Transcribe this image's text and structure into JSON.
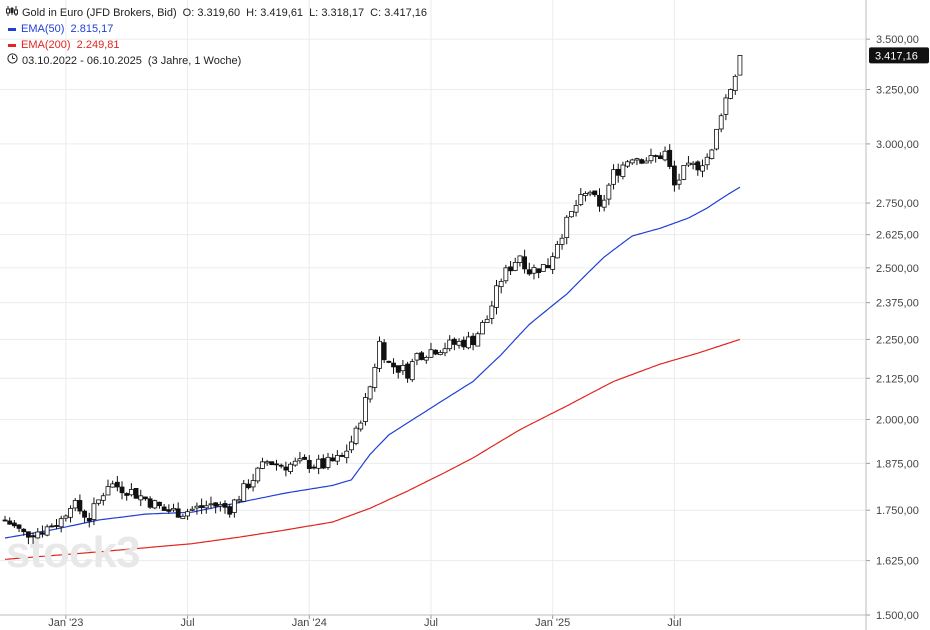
{
  "header": {
    "instrument": "Gold in Euro (JFD Brokers, Bid)",
    "ohlc": {
      "open_label": "O:",
      "open": "3.319,60",
      "high_label": "H:",
      "high": "3.419,61",
      "low_label": "L:",
      "low": "3.318,17",
      "close_label": "C:",
      "close": "3.417,16"
    },
    "ema50_label": "EMA(50)",
    "ema50_value": "2.815,17",
    "ema200_label": "EMA(200)",
    "ema200_value": "2.249,81",
    "range": "03.10.2022 - 06.10.2025",
    "range_detail": "(3 Jahre, 1 Woche)"
  },
  "watermark": "stock3",
  "last_price_badge": "3.417,16",
  "chart_data": {
    "type": "candlestick",
    "y_scale": "log",
    "ylim": [
      1500,
      3600
    ],
    "y_ticks": [
      {
        "value": 1500,
        "label": "1.500,00"
      },
      {
        "value": 1625,
        "label": "1.625,00"
      },
      {
        "value": 1750,
        "label": "1.750,00"
      },
      {
        "value": 1875,
        "label": "1.875,00"
      },
      {
        "value": 2000,
        "label": "2.000,00"
      },
      {
        "value": 2125,
        "label": "2.125,00"
      },
      {
        "value": 2250,
        "label": "2.250,00"
      },
      {
        "value": 2375,
        "label": "2.375,00"
      },
      {
        "value": 2500,
        "label": "2.500,00"
      },
      {
        "value": 2625,
        "label": "2.625,00"
      },
      {
        "value": 2750,
        "label": "2.750,00"
      },
      {
        "value": 3000,
        "label": "3.000,00"
      },
      {
        "value": 3250,
        "label": "3.250,00"
      },
      {
        "value": 3500,
        "label": "3.500,00"
      }
    ],
    "x_ticks": [
      {
        "week": 13,
        "label": "Jan '23"
      },
      {
        "week": 39,
        "label": "Jul"
      },
      {
        "week": 65,
        "label": "Jan '24"
      },
      {
        "week": 91,
        "label": "Jul"
      },
      {
        "week": 117,
        "label": "Jan '25"
      },
      {
        "week": 143,
        "label": "Jul"
      }
    ],
    "grid": true,
    "weeks": 158,
    "x_axis_weeks": 185,
    "series": [
      {
        "name": "Gold in Euro (JFD Brokers, Bid)",
        "kind": "candles",
        "anchors": [
          [
            0,
            1725
          ],
          [
            4,
            1690
          ],
          [
            8,
            1700
          ],
          [
            12,
            1725
          ],
          [
            14,
            1770
          ],
          [
            18,
            1730
          ],
          [
            22,
            1820
          ],
          [
            26,
            1805
          ],
          [
            30,
            1780
          ],
          [
            34,
            1750
          ],
          [
            38,
            1745
          ],
          [
            44,
            1765
          ],
          [
            48,
            1755
          ],
          [
            52,
            1820
          ],
          [
            56,
            1880
          ],
          [
            60,
            1870
          ],
          [
            64,
            1875
          ],
          [
            68,
            1870
          ],
          [
            72,
            1890
          ],
          [
            75,
            1960
          ],
          [
            78,
            2100
          ],
          [
            80,
            2240
          ],
          [
            82,
            2170
          ],
          [
            86,
            2145
          ],
          [
            88,
            2200
          ],
          [
            92,
            2220
          ],
          [
            96,
            2235
          ],
          [
            100,
            2250
          ],
          [
            103,
            2320
          ],
          [
            106,
            2460
          ],
          [
            110,
            2550
          ],
          [
            112,
            2490
          ],
          [
            116,
            2510
          ],
          [
            118,
            2600
          ],
          [
            122,
            2740
          ],
          [
            125,
            2800
          ],
          [
            127,
            2720
          ],
          [
            130,
            2870
          ],
          [
            134,
            2950
          ],
          [
            138,
            2930
          ],
          [
            141,
            2960
          ],
          [
            143,
            2820
          ],
          [
            145,
            2880
          ],
          [
            148,
            2910
          ],
          [
            151,
            2960
          ],
          [
            153,
            3150
          ],
          [
            156,
            3320
          ],
          [
            157,
            3417
          ]
        ]
      },
      {
        "name": "EMA(50)",
        "kind": "line",
        "color": "#1f3fd6",
        "anchors": [
          [
            0,
            1680
          ],
          [
            10,
            1700
          ],
          [
            20,
            1725
          ],
          [
            30,
            1740
          ],
          [
            40,
            1745
          ],
          [
            50,
            1770
          ],
          [
            60,
            1795
          ],
          [
            70,
            1815
          ],
          [
            74,
            1830
          ],
          [
            78,
            1900
          ],
          [
            82,
            1955
          ],
          [
            90,
            2025
          ],
          [
            100,
            2115
          ],
          [
            106,
            2200
          ],
          [
            112,
            2300
          ],
          [
            120,
            2405
          ],
          [
            128,
            2540
          ],
          [
            134,
            2620
          ],
          [
            140,
            2650
          ],
          [
            146,
            2690
          ],
          [
            150,
            2730
          ],
          [
            154,
            2780
          ],
          [
            157,
            2815
          ]
        ]
      },
      {
        "name": "EMA(200)",
        "kind": "line",
        "color": "#e0261f",
        "anchors": [
          [
            0,
            1628
          ],
          [
            20,
            1646
          ],
          [
            40,
            1666
          ],
          [
            50,
            1682
          ],
          [
            60,
            1700
          ],
          [
            70,
            1720
          ],
          [
            78,
            1755
          ],
          [
            86,
            1800
          ],
          [
            94,
            1850
          ],
          [
            100,
            1890
          ],
          [
            110,
            1970
          ],
          [
            120,
            2040
          ],
          [
            130,
            2115
          ],
          [
            140,
            2170
          ],
          [
            148,
            2205
          ],
          [
            154,
            2235
          ],
          [
            157,
            2250
          ]
        ]
      }
    ]
  }
}
